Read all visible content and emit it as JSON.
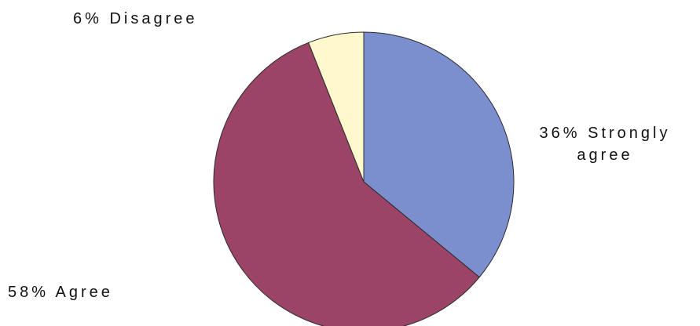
{
  "chart_data": {
    "type": "pie",
    "title": "",
    "start_angle": "12 o'clock, clockwise",
    "slices": [
      {
        "category": "Strongly agree",
        "value": 36,
        "color": "#7b8fcf",
        "label_lines": [
          "36% Strongly",
          "agree"
        ]
      },
      {
        "category": "Agree",
        "value": 58,
        "color": "#9b4468",
        "label_lines": [
          "58% Agree"
        ]
      },
      {
        "category": "Disagree",
        "value": 6,
        "color": "#fff8cc",
        "label_lines": [
          "6% Disagree"
        ]
      }
    ],
    "legend": "none (labels placed beside slices)"
  }
}
